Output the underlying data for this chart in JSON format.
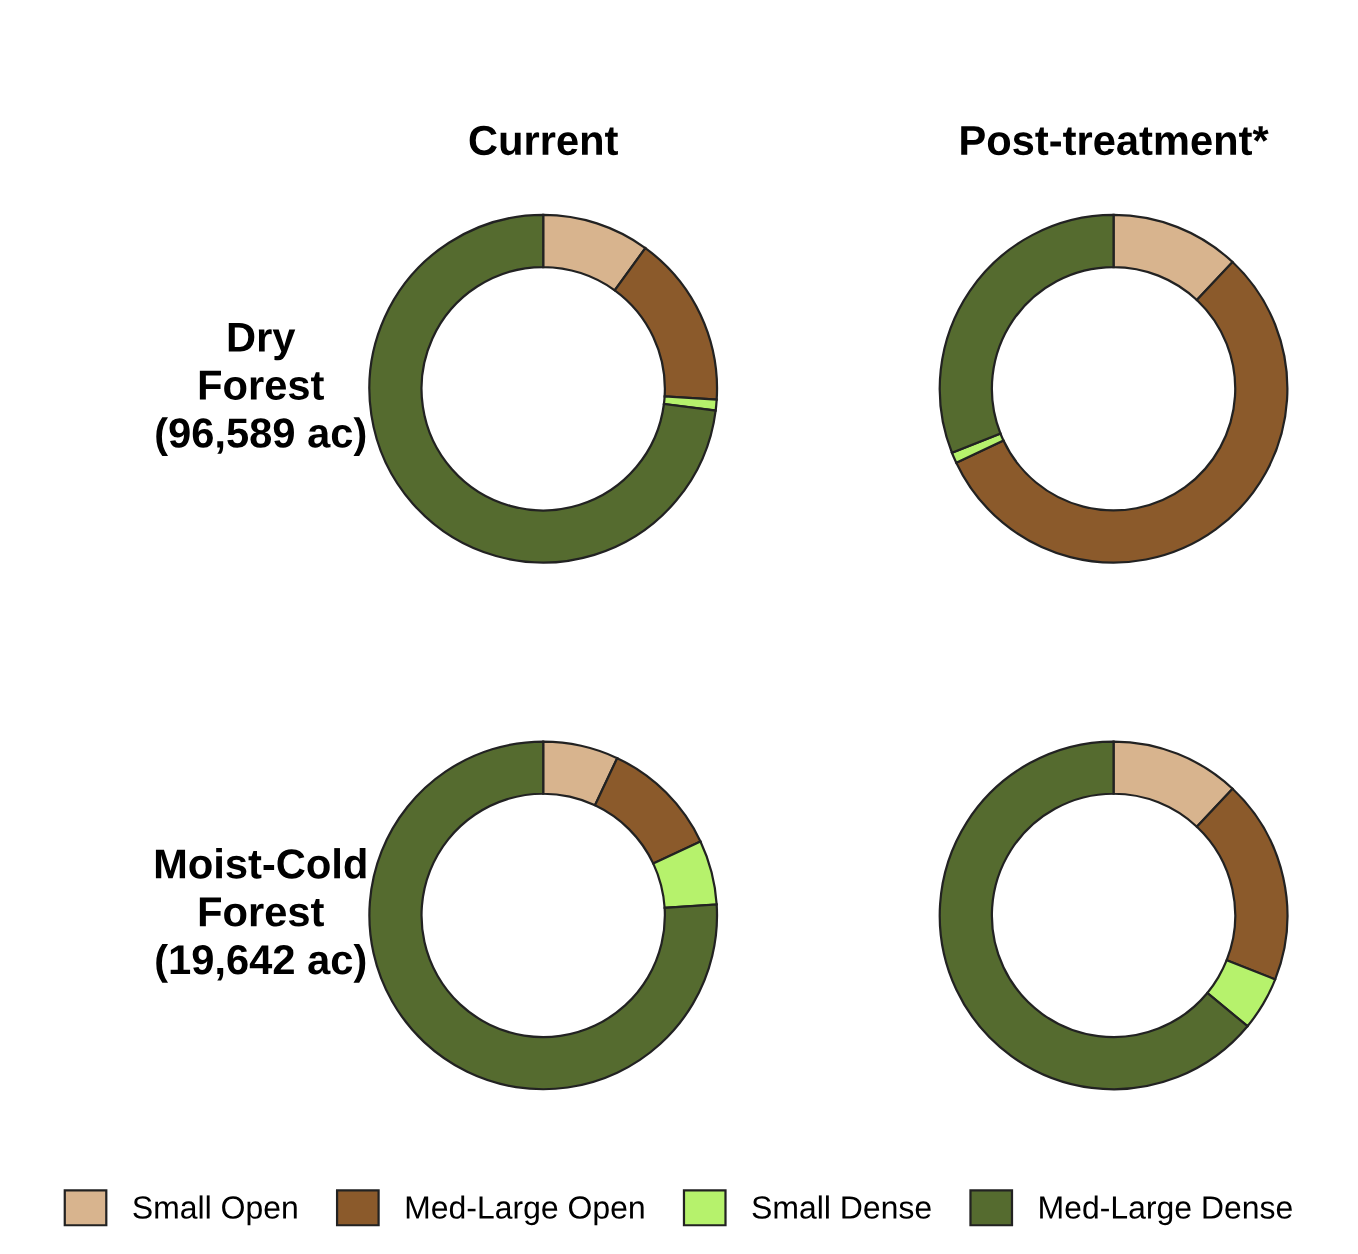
{
  "chart_data": [
    {
      "type": "donut",
      "title": "Current",
      "ylabel": "Dry\nForest\n(96,589 ac)",
      "categories": [
        "Small Open",
        "Med-Large Open",
        "Small Dense",
        "Med-Large Dense"
      ],
      "values": [
        10,
        16,
        1,
        73
      ],
      "colors": [
        "#d8b48e",
        "#8b5a2b",
        "#b6f26c",
        "#556b2f"
      ],
      "legend": "bottom"
    },
    {
      "type": "donut",
      "title": "Post-treatment*",
      "categories": [
        null,
        null,
        null,
        null
      ],
      "values": [
        12,
        56,
        1,
        31
      ],
      "colors": [
        "#d8b48e",
        "#8b5a2b",
        "#b6f26c",
        "#556b2f"
      ]
    },
    {
      "type": "donut",
      "ylabel": "Moist-Cold\nForest\n(19,642 ac)",
      "categories": [
        null,
        null,
        null,
        null
      ],
      "values": [
        7,
        11,
        6,
        76
      ],
      "colors": [
        "#d8b48e",
        "#8b5a2b",
        "#b6f26c",
        "#556b2f"
      ]
    },
    {
      "type": "donut",
      "categories": [
        null,
        null,
        null,
        null
      ],
      "values": [
        12,
        19,
        5,
        64
      ],
      "colors": [
        "#d8b48e",
        "#8b5a2b",
        "#b6f26c",
        "#556b2f"
      ]
    }
  ]
}
